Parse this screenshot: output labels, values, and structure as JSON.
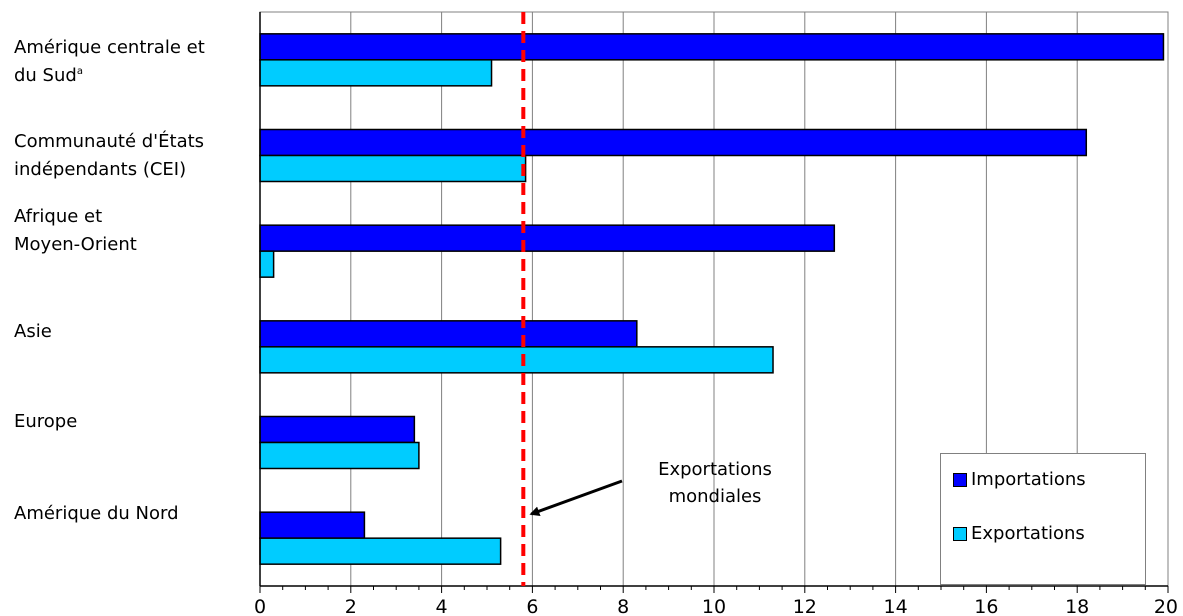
{
  "chart_data": {
    "type": "bar",
    "orientation": "horizontal",
    "categories": [
      "Amérique centrale et du Sud",
      "Communauté d'États indépendants (CEI)",
      "Afrique et Moyen-Orient",
      "Asie",
      "Europe",
      "Amérique du Nord"
    ],
    "category_label_lines": [
      [
        "Amérique centrale et",
        "du Sud"
      ],
      [
        "Communauté d'États",
        "indépendants (CEI)"
      ],
      [
        "Afrique et",
        "Moyen-Orient"
      ],
      [
        "Asie"
      ],
      [
        "Europe"
      ],
      [
        "Amérique du Nord"
      ]
    ],
    "footnote_marker": "a",
    "series": [
      {
        "name": "Importations",
        "color": "#0000ff",
        "values": [
          19.9,
          18.2,
          12.65,
          8.3,
          3.4,
          2.3
        ]
      },
      {
        "name": "Exportations",
        "color": "#00ccff",
        "values": [
          5.1,
          5.85,
          0.3,
          11.3,
          3.5,
          5.3
        ]
      }
    ],
    "xlim": [
      0,
      20
    ],
    "xticks": [
      0,
      2,
      4,
      6,
      8,
      10,
      12,
      14,
      16,
      18,
      20
    ],
    "grid": "vertical",
    "reference_line": {
      "value": 5.8,
      "color": "#ff0000",
      "style": "dashed"
    },
    "annotation": {
      "lines": [
        "Exportations",
        "mondiales"
      ],
      "arrow_to": "reference_line"
    },
    "legend_position": "bottom-right"
  }
}
